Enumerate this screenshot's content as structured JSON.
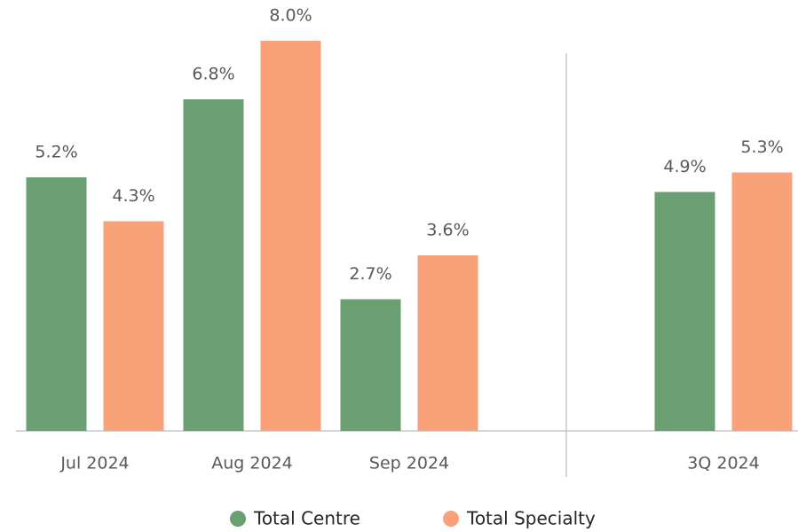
{
  "chart_data": {
    "type": "bar",
    "categories": [
      "Jul 2024",
      "Aug 2024",
      "Sep 2024",
      null,
      "3Q 2024"
    ],
    "series": [
      {
        "name": "Total Centre",
        "color": "#6a9f72",
        "values": [
          5.2,
          6.8,
          2.7,
          null,
          4.9
        ],
        "value_labels": [
          "5.2%",
          "6.8%",
          "2.7%",
          null,
          "4.9%"
        ]
      },
      {
        "name": "Total Specialty",
        "color": "#f9a27a",
        "values": [
          4.3,
          8.0,
          3.6,
          null,
          5.3
        ],
        "value_labels": [
          "4.3%",
          "8.0%",
          "3.6%",
          null,
          "5.3%"
        ]
      }
    ],
    "ylim": [
      0,
      8
    ]
  }
}
